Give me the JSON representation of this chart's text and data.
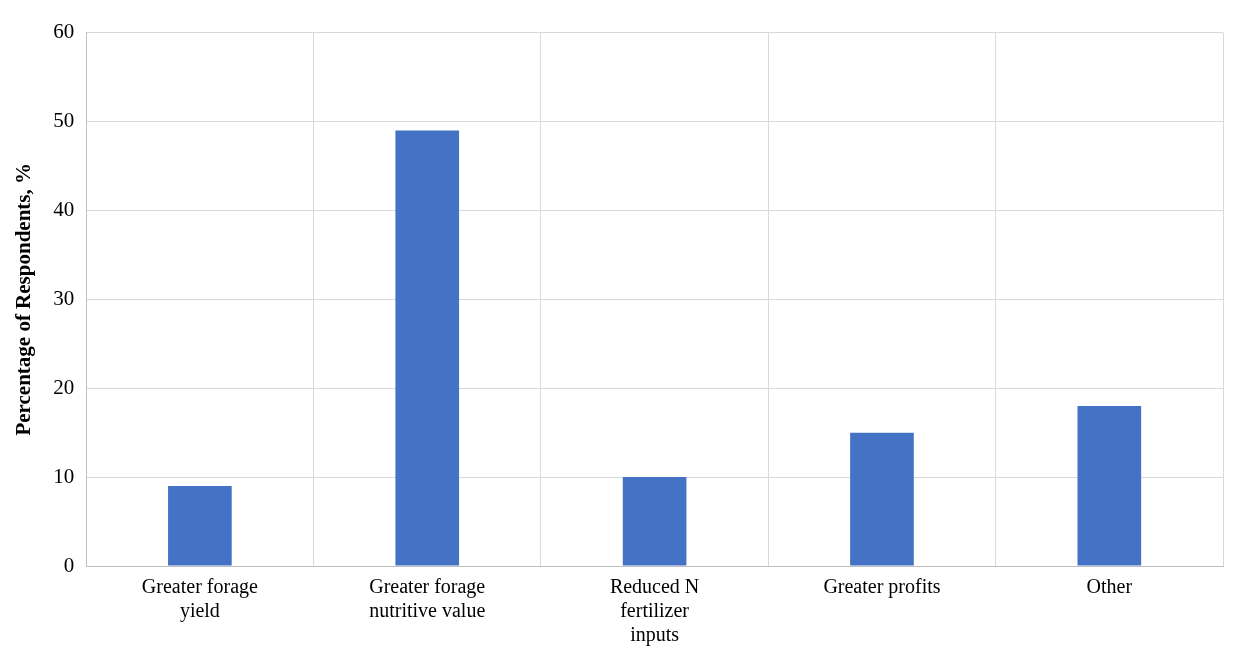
{
  "chart_data": {
    "type": "bar",
    "ylabel": "Percentage of Respondents, %",
    "categories": [
      "Greater forage yield",
      "Greater forage nutritive value",
      "Reduced N fertilizer inputs",
      "Greater profits",
      "Other"
    ],
    "values": [
      9,
      49,
      10,
      15,
      18
    ],
    "color": "#4472c4",
    "ylim": [
      0,
      60
    ],
    "yticks": [
      0,
      10,
      20,
      30,
      40,
      50,
      60
    ],
    "grid": true
  }
}
